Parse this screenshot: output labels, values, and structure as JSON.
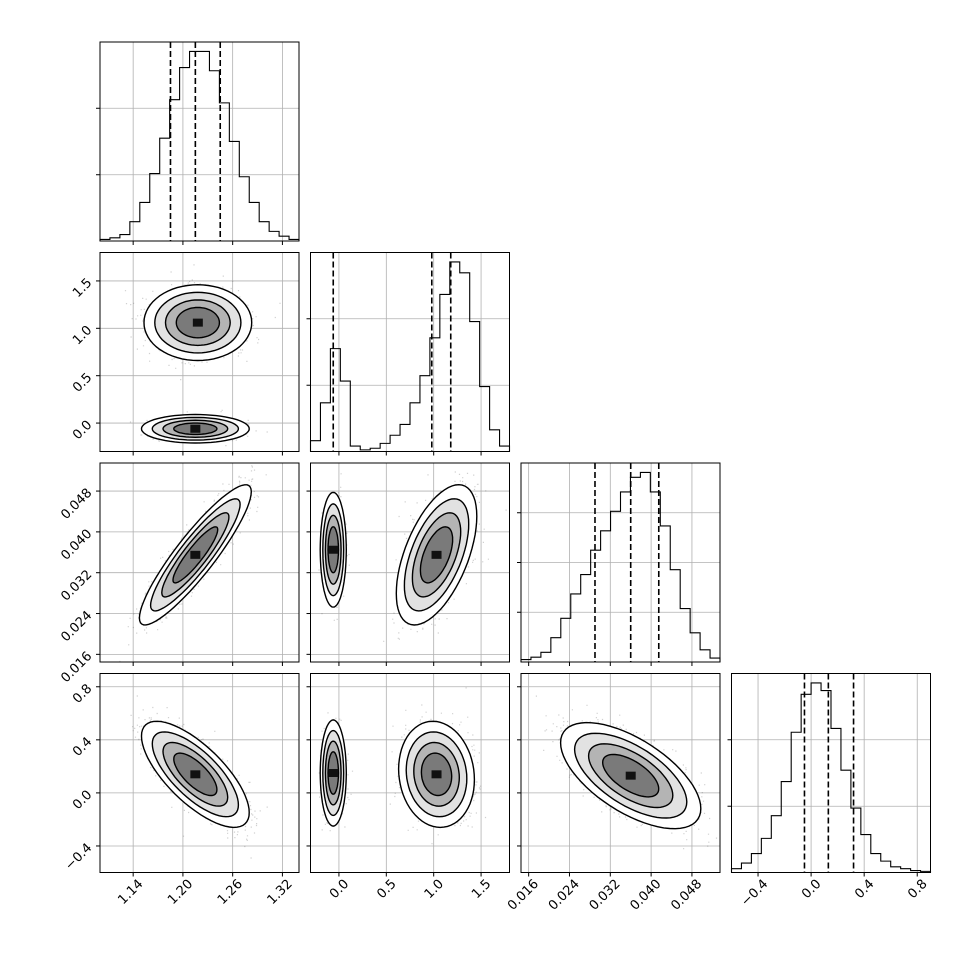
{
  "chart_data": {
    "type": "corner",
    "parameters": [
      {
        "ticks": [
          1.14,
          1.2,
          1.26,
          1.32
        ],
        "tick_labels": [
          "1.14",
          "1.20",
          "1.26",
          "1.32"
        ],
        "range": [
          1.1,
          1.34
        ],
        "quantiles": [
          1.185,
          1.215,
          1.245
        ],
        "hist": [
          0.5,
          1,
          2,
          6,
          12,
          21,
          32,
          44,
          54,
          59,
          59,
          53,
          43,
          31,
          20,
          12,
          6,
          3,
          1.5,
          0.5
        ]
      },
      {
        "ticks": [
          0.0,
          0.5,
          1.0,
          1.5
        ],
        "tick_labels": [
          "0.0",
          "0.5",
          "1.0",
          "1.5"
        ],
        "range": [
          -0.3,
          1.8
        ],
        "quantiles": [
          -0.06,
          0.98,
          1.18
        ],
        "hist": [
          2,
          9,
          19,
          13,
          1,
          0.3,
          0.6,
          1.5,
          3,
          5,
          9,
          14,
          21,
          29,
          35,
          33,
          24,
          12,
          4,
          1
        ]
      },
      {
        "ticks": [
          0.016,
          0.024,
          0.032,
          0.04,
          0.048
        ],
        "tick_labels": [
          "0.016",
          "0.024",
          "0.032",
          "0.040",
          "0.048"
        ],
        "range": [
          0.0145,
          0.0535
        ],
        "quantiles": [
          0.029,
          0.036,
          0.0415
        ],
        "hist": [
          0.5,
          1,
          2,
          5,
          9,
          14,
          18,
          23,
          27,
          31,
          35,
          38,
          39,
          35,
          28,
          19,
          11,
          6,
          2.5,
          0.8
        ]
      },
      {
        "ticks": [
          -0.4,
          0.0,
          0.4,
          0.8
        ],
        "tick_labels": [
          "−0.4",
          "0.0",
          "0.4",
          "0.8"
        ],
        "range": [
          -0.6,
          0.9
        ],
        "quantiles": [
          -0.05,
          0.13,
          0.32
        ],
        "hist": [
          1,
          2.5,
          5,
          9,
          15,
          24,
          37,
          47,
          50,
          48,
          38,
          27,
          17,
          10,
          5,
          3,
          1.5,
          1,
          0.5,
          0.3
        ]
      }
    ],
    "hist_yticks": [
      [
        0.333,
        0.667
      ],
      [
        0.333,
        0.667
      ],
      [
        0.25,
        0.5,
        0.75
      ],
      [
        0.333,
        0.667
      ]
    ],
    "pairs": [
      {
        "row": 1,
        "col": 0,
        "components": [
          {
            "mx": 1.218,
            "my": 1.06,
            "sx": 0.026,
            "sy": 0.16,
            "rho": 0.0,
            "w": 0.78
          },
          {
            "mx": 1.215,
            "my": -0.06,
            "sx": 0.026,
            "sy": 0.06,
            "rho": 0.0,
            "w": 0.22
          }
        ]
      },
      {
        "row": 2,
        "col": 0,
        "components": [
          {
            "mx": 1.215,
            "my": 0.0355,
            "sx": 0.027,
            "sy": 0.0055,
            "rho": 0.9,
            "w": 1.0
          }
        ]
      },
      {
        "row": 2,
        "col": 1,
        "components": [
          {
            "mx": -0.06,
            "my": 0.0365,
            "sx": 0.055,
            "sy": 0.0045,
            "rho": 0.0,
            "w": 0.3
          },
          {
            "mx": 1.03,
            "my": 0.0355,
            "sx": 0.17,
            "sy": 0.0055,
            "rho": 0.55,
            "w": 0.7
          }
        ]
      },
      {
        "row": 3,
        "col": 0,
        "components": [
          {
            "mx": 1.215,
            "my": 0.14,
            "sx": 0.026,
            "sy": 0.16,
            "rho": -0.72,
            "w": 1.0
          }
        ]
      },
      {
        "row": 3,
        "col": 1,
        "components": [
          {
            "mx": -0.06,
            "my": 0.15,
            "sx": 0.055,
            "sy": 0.16,
            "rho": 0.0,
            "w": 0.3
          },
          {
            "mx": 1.03,
            "my": 0.14,
            "sx": 0.16,
            "sy": 0.16,
            "rho": -0.1,
            "w": 0.7
          }
        ]
      },
      {
        "row": 3,
        "col": 2,
        "components": [
          {
            "mx": 0.036,
            "my": 0.13,
            "sx": 0.0055,
            "sy": 0.16,
            "rho": -0.62,
            "w": 1.0
          }
        ]
      }
    ],
    "grid": true
  }
}
